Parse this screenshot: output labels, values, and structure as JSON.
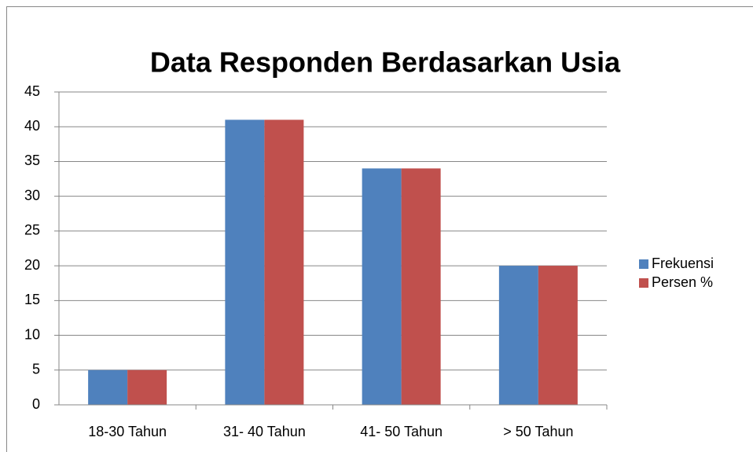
{
  "chart_data": {
    "type": "bar",
    "title": "Data Responden Berdasarkan Usia",
    "categories": [
      "18-30 Tahun",
      "31- 40 Tahun",
      "41- 50 Tahun",
      "> 50 Tahun"
    ],
    "series": [
      {
        "name": "Frekuensi",
        "color": "#4f81bd",
        "values": [
          5,
          41,
          34,
          20
        ]
      },
      {
        "name": "Persen %",
        "color": "#c0504d",
        "values": [
          5,
          41,
          34,
          20
        ]
      }
    ],
    "ylim": [
      0,
      45
    ],
    "yticks": [
      0,
      5,
      10,
      15,
      20,
      25,
      30,
      35,
      40,
      45
    ],
    "grid": true,
    "legend": "right"
  }
}
